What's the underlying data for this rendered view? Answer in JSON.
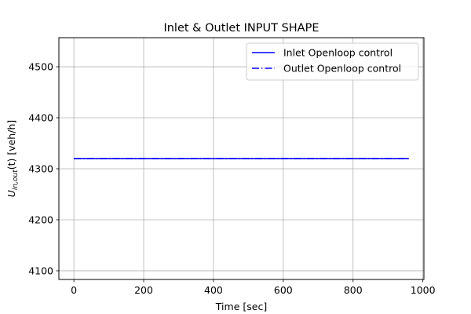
{
  "chart_data": {
    "type": "line",
    "title": "Inlet & Outlet INPUT SHAPE",
    "xlabel": "Time [sec]",
    "ylabel_prefix": "U",
    "ylabel_sub": "in,out",
    "ylabel_suffix": "(t) [veh/h]",
    "xlim": [
      -43,
      1003
    ],
    "ylim": [
      4083,
      4557
    ],
    "xticks": [
      0,
      200,
      400,
      600,
      800,
      1000
    ],
    "yticks": [
      4100,
      4200,
      4300,
      4400,
      4500
    ],
    "grid": true,
    "legend_position": "top-right",
    "series": [
      {
        "name": "Inlet Openloop control",
        "color": "#0000ff",
        "style": "solid",
        "x": [
          0,
          960
        ],
        "y": [
          4320,
          4320
        ]
      },
      {
        "name": "Outlet Openloop control",
        "color": "#0000ff",
        "style": "dashdot",
        "x": [
          0,
          960
        ],
        "y": [
          4320,
          4320
        ]
      }
    ]
  }
}
